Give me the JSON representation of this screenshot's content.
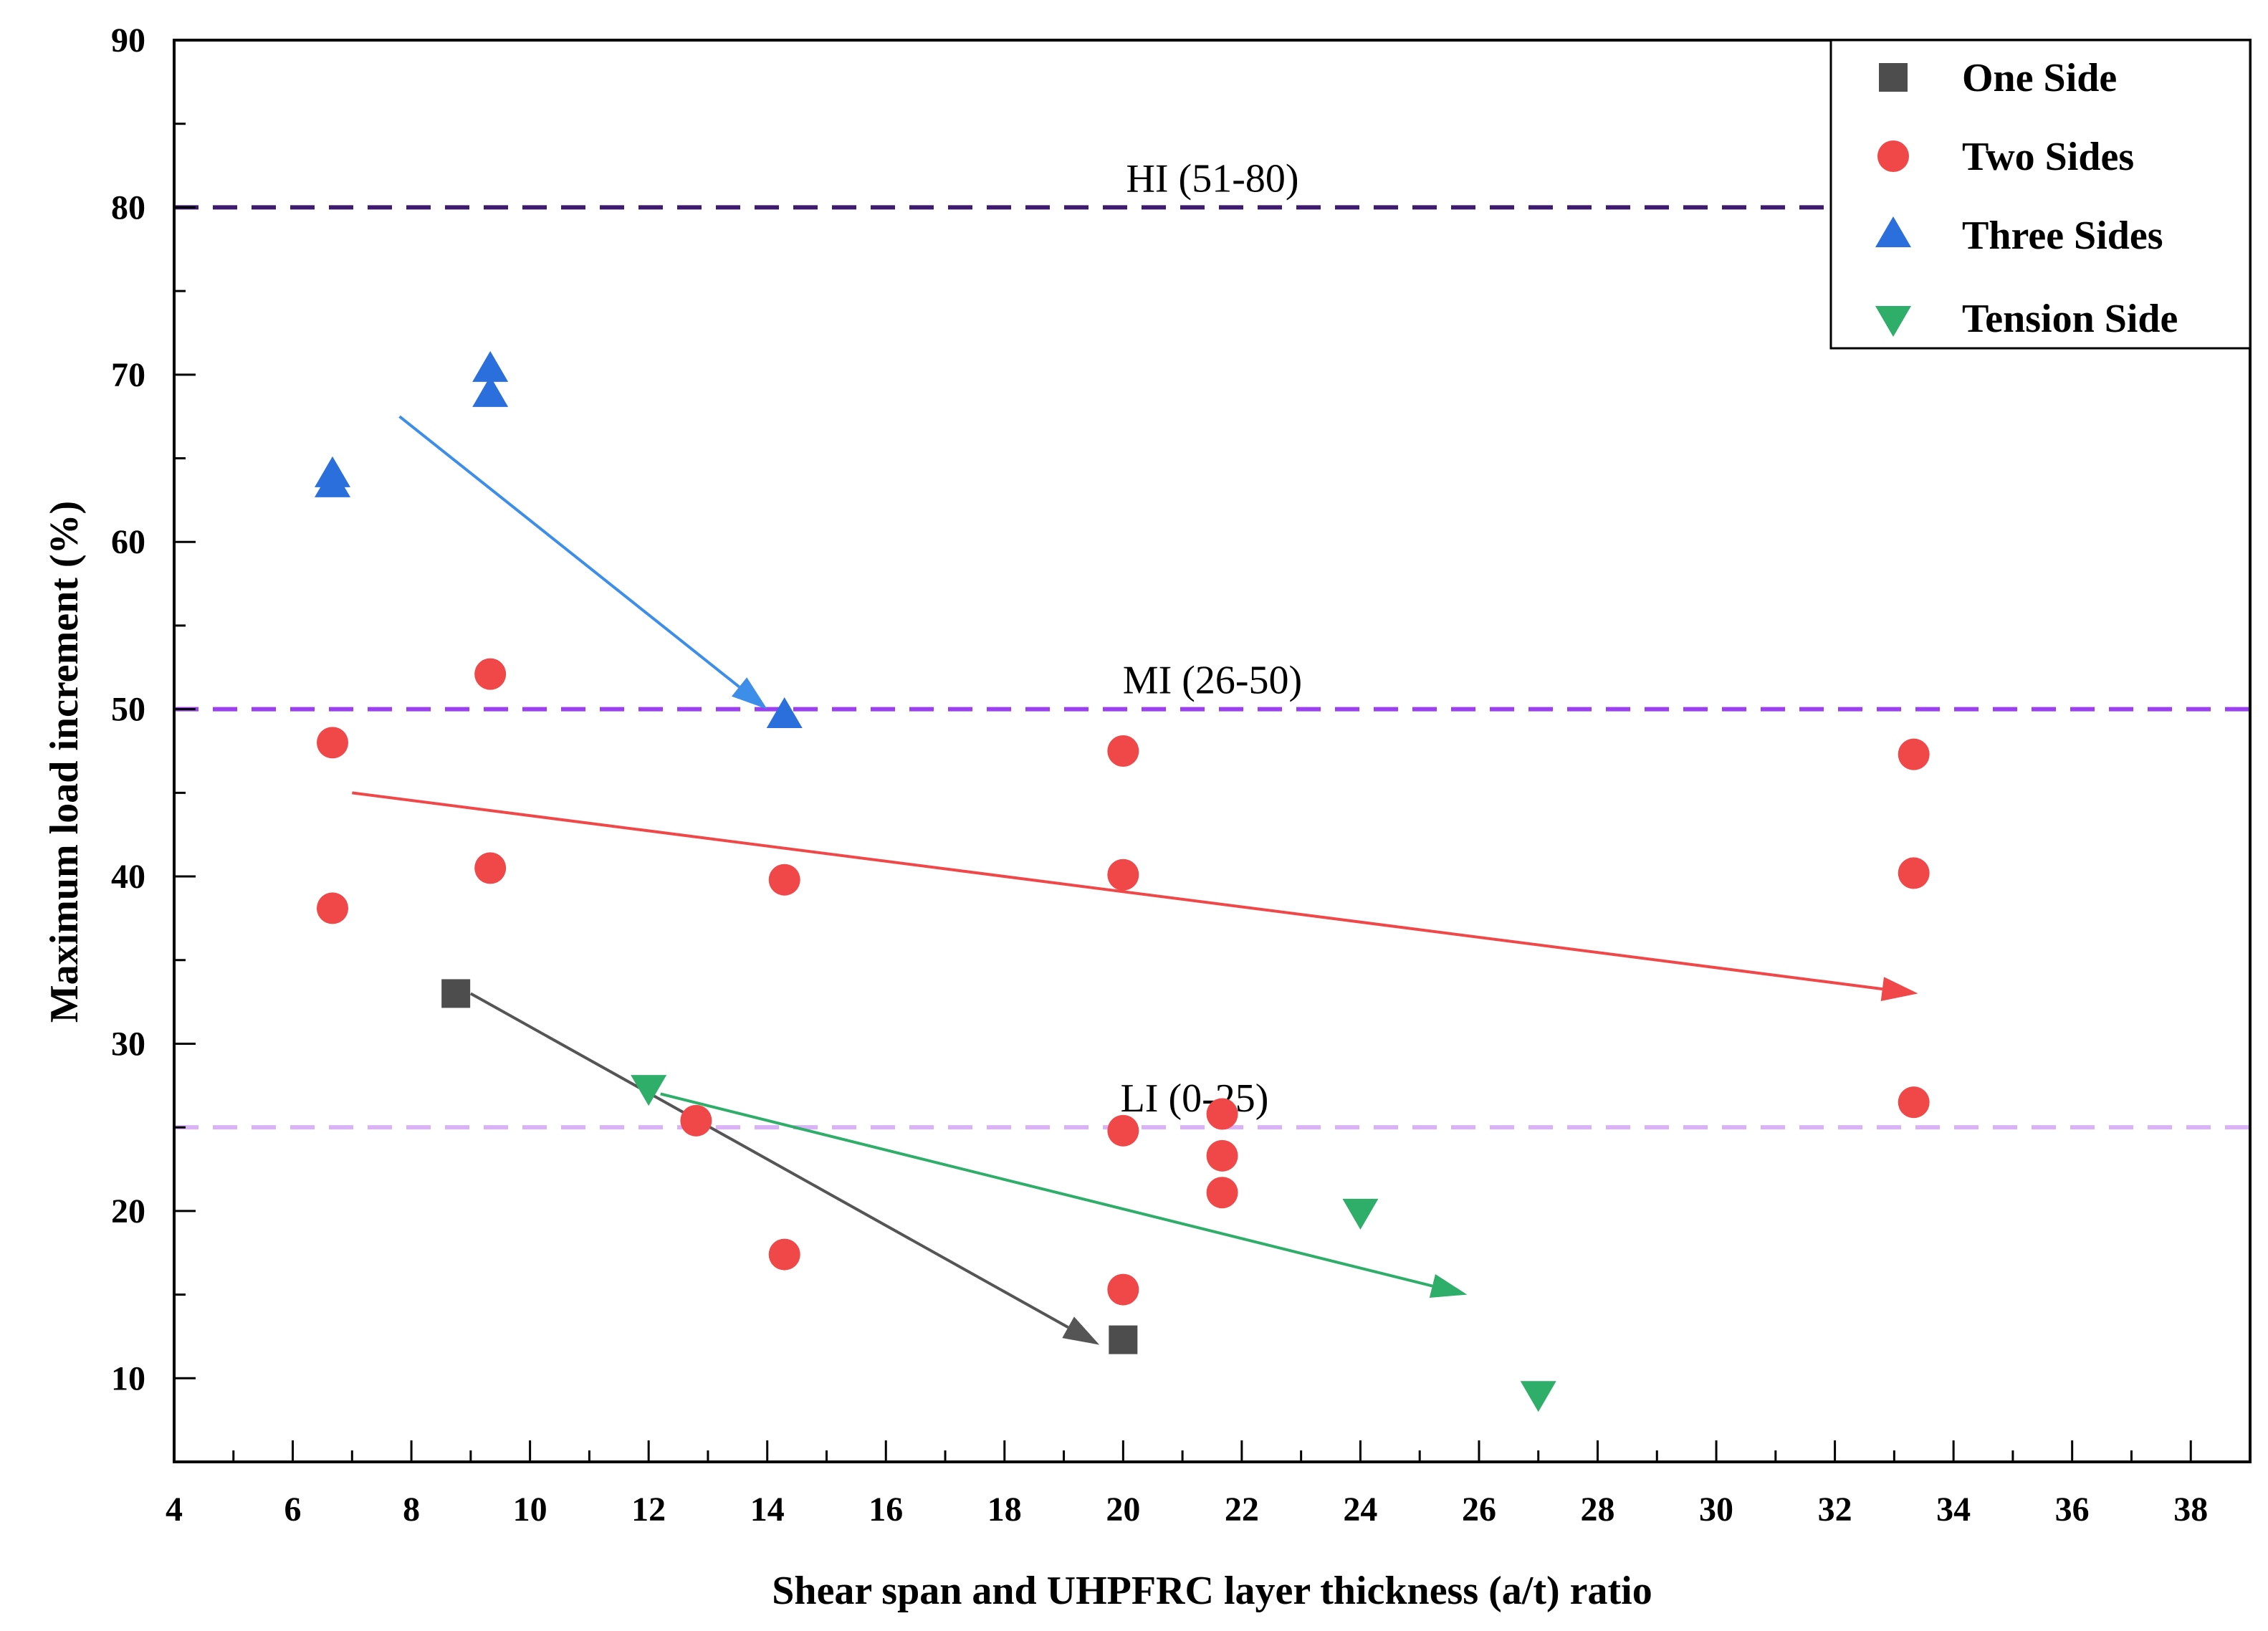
{
  "chart_data": {
    "type": "scatter",
    "title": "",
    "xlabel": "Shear span and UHPFRC layer thickness (a/t) ratio",
    "ylabel": "Maximum load increment (%)",
    "xlim": [
      4,
      39
    ],
    "ylim": [
      5,
      90
    ],
    "xticks": [
      4,
      6,
      8,
      10,
      12,
      14,
      16,
      18,
      20,
      22,
      24,
      26,
      28,
      30,
      32,
      34,
      36,
      38
    ],
    "yticks": [
      10,
      20,
      30,
      40,
      50,
      60,
      70,
      80,
      90
    ],
    "legend_position": "top-right",
    "grid": false,
    "series": [
      {
        "name": "One Side",
        "marker": "square",
        "color": "#4d4d4d",
        "points": [
          [
            8.75,
            33.0
          ],
          [
            20.0,
            12.3
          ]
        ]
      },
      {
        "name": "Two Sides",
        "marker": "circle",
        "color": "#f04848",
        "points": [
          [
            6.67,
            48.0
          ],
          [
            6.67,
            38.1
          ],
          [
            9.33,
            52.1
          ],
          [
            9.33,
            40.5
          ],
          [
            12.8,
            25.4
          ],
          [
            14.29,
            39.8
          ],
          [
            14.29,
            17.4
          ],
          [
            20.0,
            47.5
          ],
          [
            20.0,
            40.1
          ],
          [
            20.0,
            24.8
          ],
          [
            20.0,
            15.3
          ],
          [
            21.67,
            25.8
          ],
          [
            21.67,
            23.3
          ],
          [
            21.67,
            21.1
          ],
          [
            33.33,
            47.3
          ],
          [
            33.33,
            40.2
          ],
          [
            33.33,
            26.5
          ]
        ]
      },
      {
        "name": "Three Sides",
        "marker": "triangle-up",
        "color": "#2a6fdc",
        "points": [
          [
            6.67,
            64.0
          ],
          [
            6.67,
            63.4
          ],
          [
            9.33,
            70.3
          ],
          [
            9.33,
            68.8
          ],
          [
            14.29,
            49.6
          ]
        ]
      },
      {
        "name": "Tension Side",
        "marker": "triangle-down",
        "color": "#2fae6a",
        "points": [
          [
            12.0,
            27.4
          ],
          [
            24.0,
            20.0
          ],
          [
            27.0,
            9.1
          ]
        ]
      }
    ],
    "reference_lines": [
      {
        "y": 80,
        "label": "HI (51-80)",
        "color": "#3d1a6e"
      },
      {
        "y": 50,
        "label": "MI (26-50)",
        "color": "#9b3ff0"
      },
      {
        "y": 25,
        "label": "LI (0-25)",
        "color": "#d9b3f5"
      }
    ],
    "trend_arrows": [
      {
        "series": "One Side",
        "from": [
          9.0,
          33.0
        ],
        "to": [
          19.6,
          12.0
        ],
        "color": "#555555"
      },
      {
        "series": "Two Sides",
        "from": [
          7.0,
          45.0
        ],
        "to": [
          33.4,
          33.0
        ],
        "color": "#f04848"
      },
      {
        "series": "Three Sides",
        "from": [
          7.8,
          67.5
        ],
        "to": [
          14.0,
          50.0
        ],
        "color": "#3d8ee8"
      },
      {
        "series": "Tension Side",
        "from": [
          12.2,
          27.0
        ],
        "to": [
          25.8,
          15.0
        ],
        "color": "#2fae6a"
      }
    ]
  }
}
